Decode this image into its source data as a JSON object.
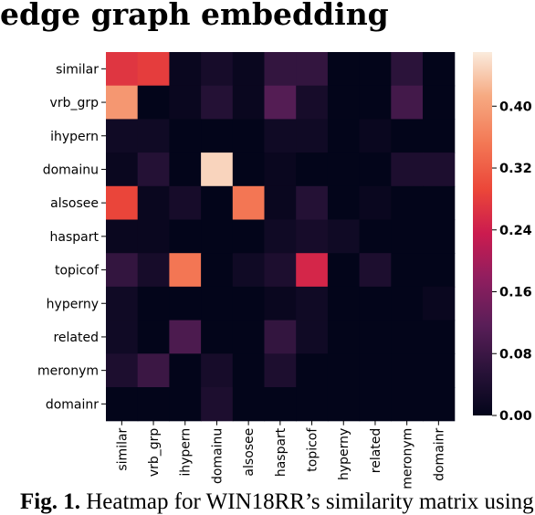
{
  "page": {
    "title": "edge graph embedding",
    "caption_prefix": "Fig. 1.",
    "caption_text": " Heatmap for WIN18RR’s similarity matrix using"
  },
  "chart_data": {
    "type": "heatmap",
    "title": "edge graph embedding",
    "rows": [
      "similar",
      "vrb_grp",
      "ihypern",
      "domainu",
      "alsosee",
      "haspart",
      "topicof",
      "hyperny",
      "related",
      "meronym",
      "domainr"
    ],
    "columns": [
      "similar",
      "vrb_grp",
      "ihypern",
      "domainu",
      "alsosee",
      "haspart",
      "topicof",
      "hyperny",
      "related",
      "meronym",
      "domainr"
    ],
    "values": [
      [
        0.27,
        0.28,
        0.01,
        0.03,
        0.01,
        0.07,
        0.07,
        0.0,
        0.0,
        0.06,
        0.0
      ],
      [
        0.39,
        0.0,
        0.01,
        0.05,
        0.01,
        0.11,
        0.03,
        0.0,
        0.0,
        0.09,
        0.0
      ],
      [
        0.02,
        0.02,
        0.0,
        0.0,
        0.0,
        0.02,
        0.02,
        0.0,
        0.01,
        0.0,
        0.0
      ],
      [
        0.01,
        0.05,
        0.0,
        0.45,
        0.0,
        0.01,
        0.0,
        0.0,
        0.0,
        0.04,
        0.04
      ],
      [
        0.29,
        0.01,
        0.03,
        0.0,
        0.35,
        0.01,
        0.05,
        0.0,
        0.01,
        0.0,
        0.0
      ],
      [
        0.01,
        0.01,
        0.0,
        0.0,
        0.0,
        0.02,
        0.03,
        0.02,
        0.0,
        0.0,
        0.0
      ],
      [
        0.07,
        0.03,
        0.35,
        0.0,
        0.02,
        0.04,
        0.25,
        0.0,
        0.04,
        0.0,
        0.0
      ],
      [
        0.02,
        0.0,
        0.0,
        0.0,
        0.0,
        0.01,
        0.02,
        0.0,
        0.0,
        0.0,
        0.01
      ],
      [
        0.02,
        0.0,
        0.1,
        0.0,
        0.0,
        0.07,
        0.02,
        0.0,
        0.0,
        0.0,
        0.0
      ],
      [
        0.04,
        0.08,
        0.0,
        0.03,
        0.0,
        0.04,
        0.0,
        0.0,
        0.0,
        0.0,
        0.0
      ],
      [
        0.0,
        0.0,
        0.0,
        0.04,
        0.0,
        0.0,
        0.0,
        0.0,
        0.0,
        0.0,
        0.0
      ]
    ],
    "colorbar": {
      "min": 0.0,
      "max": 0.47,
      "ticks": [
        0.0,
        0.08,
        0.16,
        0.24,
        0.32,
        0.4
      ],
      "tick_labels": [
        "0.00",
        "0.08",
        "0.16",
        "0.24",
        "0.32",
        "0.40"
      ],
      "colormap": "rocket"
    }
  }
}
